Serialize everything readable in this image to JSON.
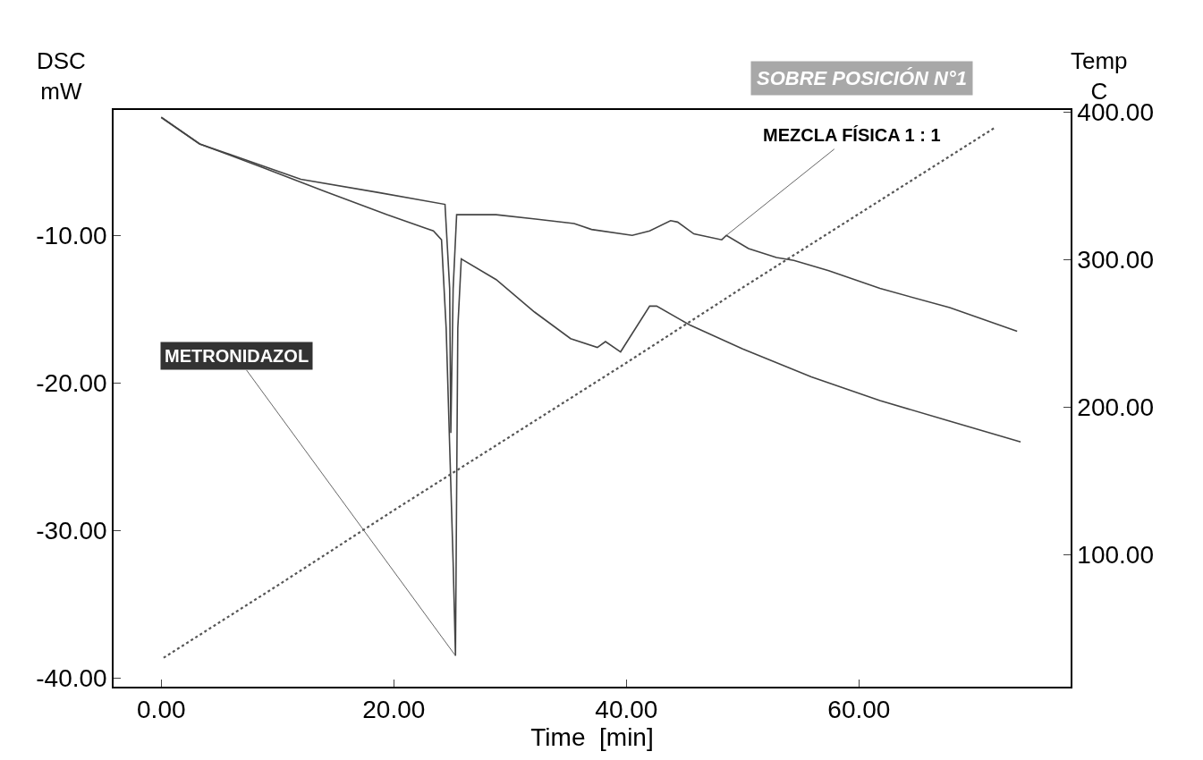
{
  "chart_data": {
    "type": "line",
    "title": "SOBRE POSICIÓN N°1",
    "xlabel": "Time  [min]",
    "ylabel": "DSC\nmW",
    "y2label": "Temp\nC",
    "xlim": [
      -4.1,
      78.2
    ],
    "xticks": [
      {
        "value": 0,
        "label": "0.00"
      },
      {
        "value": 20,
        "label": "20.00"
      },
      {
        "value": 40,
        "label": "40.00"
      },
      {
        "value": 60,
        "label": "60.00"
      }
    ],
    "ylim": [
      -40.6,
      -1.5
    ],
    "yticks": [
      {
        "value": -40,
        "label": "-40.00"
      },
      {
        "value": -30,
        "label": "-30.00"
      },
      {
        "value": -20,
        "label": "-20.00"
      },
      {
        "value": -10,
        "label": "-10.00"
      }
    ],
    "y2lim": [
      10.4,
      401.4
    ],
    "y2ticks": [
      {
        "value": 100,
        "label": "100.00"
      },
      {
        "value": 200,
        "label": "200.00"
      },
      {
        "value": 300,
        "label": "300.00"
      },
      {
        "value": 400,
        "label": "400.00"
      }
    ],
    "annotations": [
      {
        "text": "METRONIDAZOL",
        "x": 25.3,
        "y": -38.5
      },
      {
        "text": "MEZCLA FÍSICA 1 : 1",
        "x": 48.6,
        "y": -10.0
      }
    ],
    "series": [
      {
        "color": "#444444",
        "line_style": "solid",
        "x": [
          0,
          3.3,
          12.0,
          18.7,
          24.4,
          24.8,
          24.9,
          25.1,
          25.4,
          28.8,
          32.2,
          35.5,
          37.0,
          40.5,
          42.0,
          43.8,
          44.4,
          45.8,
          48.2,
          48.6,
          50.5,
          52.9,
          54.4,
          57.4,
          61.8,
          67.8,
          73.6
        ],
        "values": [
          -2.0,
          -3.8,
          -6.2,
          -7.1,
          -7.9,
          -13.6,
          -23.4,
          -13.6,
          -8.6,
          -8.6,
          -8.9,
          -9.2,
          -9.6,
          -10.0,
          -9.7,
          -9.0,
          -9.1,
          -9.9,
          -10.3,
          -10.0,
          -10.9,
          -11.5,
          -11.7,
          -12.4,
          -13.6,
          -14.9,
          -16.5
        ]
      },
      {
        "color": "#444444",
        "line_style": "solid",
        "x": [
          0,
          3.3,
          8.7,
          14.0,
          19.4,
          23.4,
          24.1,
          24.5,
          25.1,
          25.3,
          25.5,
          25.8,
          28.8,
          32.1,
          35.2,
          37.5,
          38.2,
          39.5,
          42.0,
          42.6,
          45.5,
          50.0,
          55.9,
          61.8,
          67.8,
          73.9
        ],
        "values": [
          -2.0,
          -3.8,
          -5.4,
          -7.0,
          -8.6,
          -9.7,
          -10.3,
          -16.3,
          -32.2,
          -38.5,
          -16.3,
          -11.6,
          -13.0,
          -15.2,
          -17.0,
          -17.6,
          -17.2,
          -17.9,
          -14.8,
          -14.8,
          -16.1,
          -17.7,
          -19.6,
          -21.2,
          -22.6,
          -24.0
        ]
      },
      {
        "color": "#555555",
        "line_style": "dotted",
        "axis": "y2",
        "x": [
          0.2,
          10,
          20,
          30,
          40,
          50,
          60,
          71.6
        ],
        "values": [
          30,
          79,
          130,
          180,
          230,
          281,
          331,
          389
        ]
      }
    ]
  }
}
